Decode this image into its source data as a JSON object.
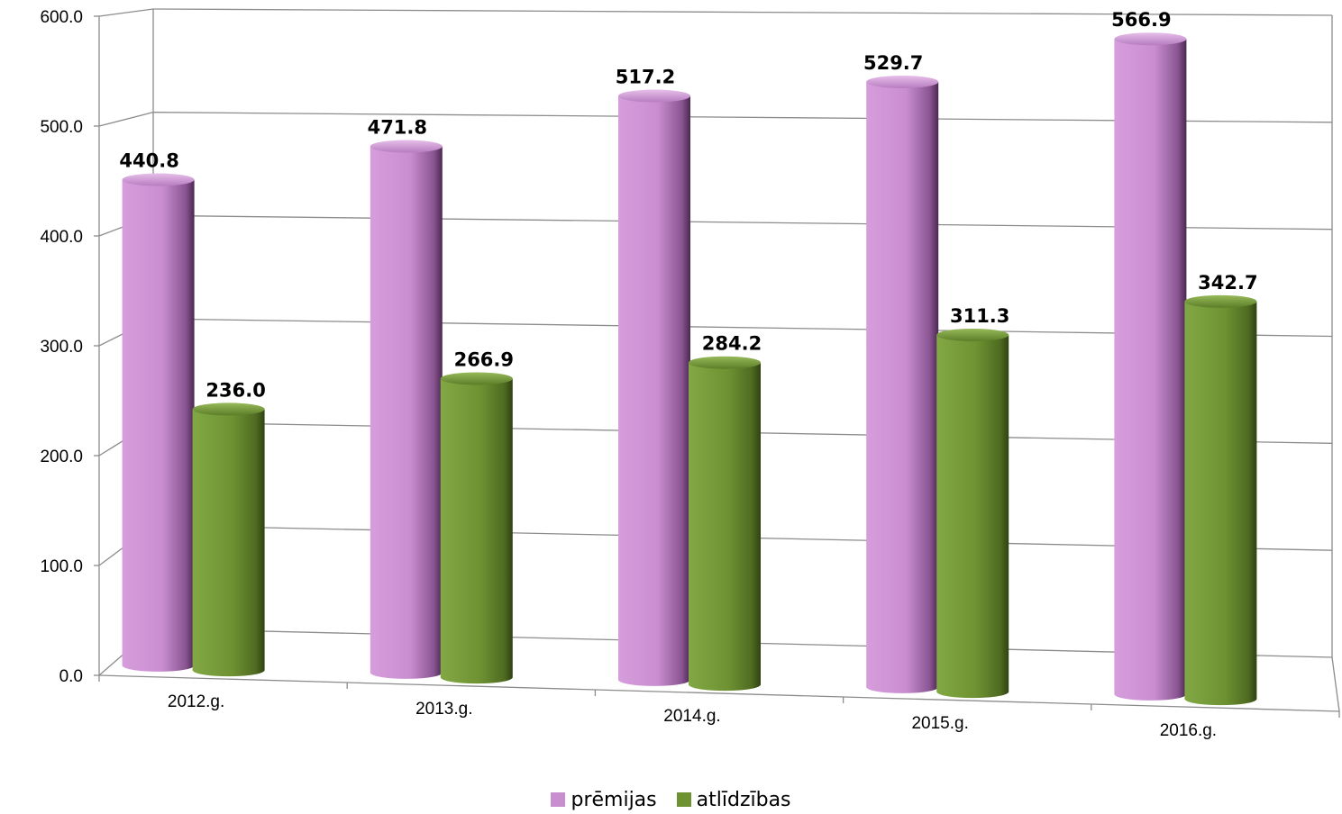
{
  "chart_data": {
    "type": "bar",
    "categories": [
      "2012.g.",
      "2013.g.",
      "2014.g.",
      "2015.g.",
      "2016.g."
    ],
    "series": [
      {
        "name": "prēmijas",
        "values": [
          440.8,
          471.8,
          517.2,
          529.7,
          566.9
        ],
        "color": "#c98ed0"
      },
      {
        "name": "atlīdzības",
        "values": [
          236.0,
          266.9,
          284.2,
          311.3,
          342.7
        ],
        "color": "#6e9232"
      }
    ],
    "data_labels": {
      "prēmijas": [
        "440.8",
        "471.8",
        "517.2",
        "529.7",
        "566.9"
      ],
      "atlīdzības": [
        "236.0",
        "266.9",
        "284.2",
        "311.3",
        "342.7"
      ]
    },
    "yticks": [
      "0.0",
      "100.0",
      "200.0",
      "300.0",
      "400.0",
      "500.0",
      "600.0"
    ],
    "ylim": [
      0,
      600
    ],
    "grid": true,
    "legend_position": "bottom"
  }
}
